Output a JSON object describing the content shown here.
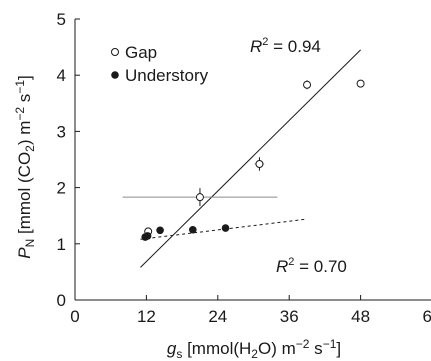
{
  "chart_data": {
    "type": "scatter",
    "title": "",
    "xlim": [
      0,
      60
    ],
    "ylim": [
      0,
      5
    ],
    "xticks": [
      "0",
      "12",
      "24",
      "36",
      "48",
      "60"
    ],
    "yticks": [
      "0",
      "1",
      "2",
      "3",
      "4",
      "5"
    ],
    "xlabel": {
      "var": "g",
      "sub": "s",
      "a": " [mmol(H",
      "b": "2",
      "c": "O) m",
      "d": "−2",
      "e": " s",
      "f": "−1",
      "g": "]"
    },
    "ylabel": {
      "var": "P",
      "sub": "N",
      "a": " [mmol (CO",
      "b": "2",
      "c": ") m",
      "d": "−2",
      "e": " s",
      "f": "−1",
      "g": "]"
    },
    "legend_position": "top-left",
    "series": [
      {
        "name": "Gap",
        "marker": "open-circle",
        "color": "#1a1a1a",
        "points": [
          {
            "x": 12.3,
            "y": 1.22
          },
          {
            "x": 21.0,
            "y": 1.83,
            "xerr": 13.0,
            "yerr": 0.16
          },
          {
            "x": 31.0,
            "y": 2.42,
            "xerr": 0.8,
            "yerr": 0.12
          },
          {
            "x": 39.0,
            "y": 3.83,
            "xerr": 0.3,
            "yerr": 0.08
          },
          {
            "x": 48.0,
            "y": 3.85
          }
        ],
        "fit": {
          "style": "solid",
          "x1": 11.0,
          "y1": 0.58,
          "x2": 48.0,
          "y2": 4.45
        },
        "r2_label": {
          "pre": "R",
          "sup": "2",
          "post": " = 0.94"
        }
      },
      {
        "name": "Understory",
        "marker": "filled-circle",
        "color": "#1a1a1a",
        "points": [
          {
            "x": 11.8,
            "y": 1.12
          },
          {
            "x": 12.2,
            "y": 1.14
          },
          {
            "x": 14.3,
            "y": 1.24
          },
          {
            "x": 19.8,
            "y": 1.25
          },
          {
            "x": 25.3,
            "y": 1.28
          }
        ],
        "fit": {
          "style": "dashed",
          "x1": 11.0,
          "y1": 1.08,
          "x2": 39.0,
          "y2": 1.44
        },
        "r2_label": {
          "pre": "R",
          "sup": "2",
          "post": " = 0.70"
        }
      }
    ]
  }
}
